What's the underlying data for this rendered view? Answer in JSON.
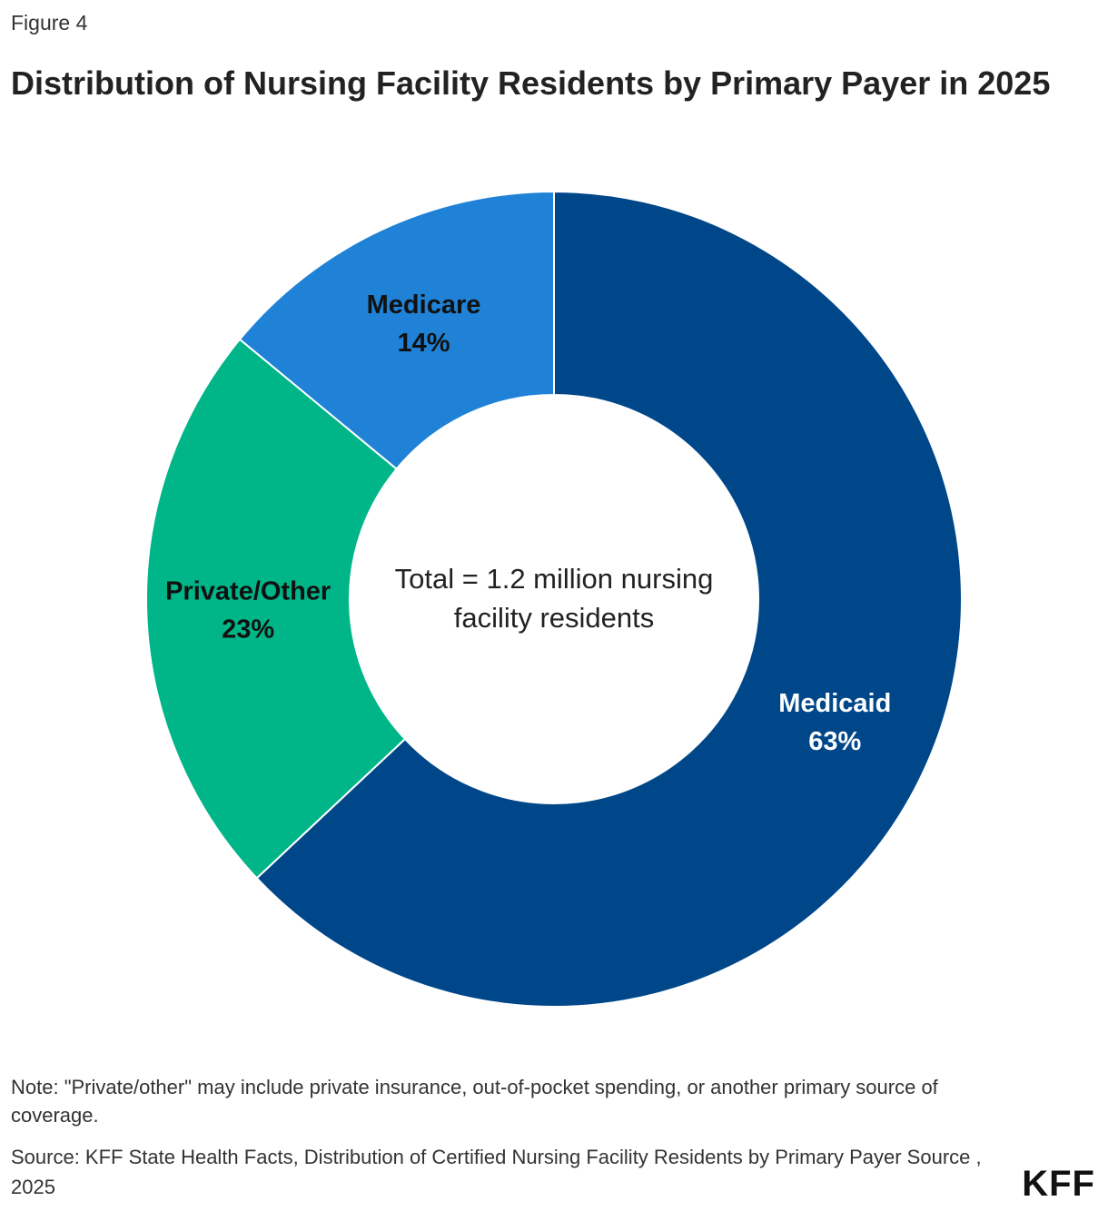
{
  "figure_label": "Figure 4",
  "chart_data": {
    "type": "donut",
    "title": "Distribution of Nursing Facility Residents by Primary Payer in 2025",
    "categories": [
      "Medicaid",
      "Private/Other",
      "Medicare"
    ],
    "values": [
      63,
      23,
      14
    ],
    "value_labels": [
      "63%",
      "23%",
      "14%"
    ],
    "colors": [
      "#00478a",
      "#00b588",
      "#1f82d6"
    ],
    "label_colors": [
      "#ffffff",
      "#111111",
      "#111111"
    ],
    "center_text": "Total = 1.2 million nursing facility residents"
  },
  "note": "Note: \"Private/other\" may include private insurance, out-of-pocket spending, or another primary source of coverage.",
  "source": "Source: KFF State Health Facts, Distribution of Certified Nursing Facility Residents by Primary Payer Source , 2025",
  "logo": "KFF"
}
